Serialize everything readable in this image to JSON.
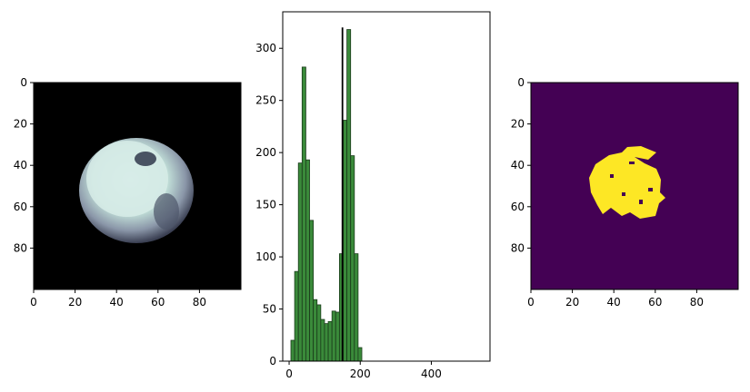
{
  "chart_data": [
    {
      "type": "image",
      "xlim": [
        0,
        100
      ],
      "ylim": [
        100,
        0
      ],
      "xticks": [
        0,
        20,
        40,
        60,
        80
      ],
      "yticks": [
        0,
        20,
        40,
        60,
        80
      ],
      "colormap": "bone",
      "subject": "bright circular blob on black background",
      "blob_center": [
        50,
        54
      ],
      "blob_radius": 26,
      "blob_bright_core_center": [
        48,
        48
      ],
      "blob_bright_core_radius": 20
    },
    {
      "type": "bar",
      "subtype": "histogram",
      "xlim": [
        -18,
        565
      ],
      "ylim": [
        0,
        335
      ],
      "xticks": [
        0,
        200,
        400
      ],
      "yticks": [
        0,
        50,
        100,
        150,
        200,
        250,
        300
      ],
      "bin_width": 10.5,
      "bin_edges_start": 5,
      "values": [
        20,
        86,
        190,
        282,
        193,
        135,
        59,
        54,
        40,
        36,
        38,
        48,
        47,
        103,
        231,
        318,
        197,
        103,
        13
      ],
      "bar_color": "#3a8a3a",
      "edge_color": "#1a3a1a",
      "threshold": 150,
      "threshold_ymax": 320,
      "threshold_color": "#000000"
    },
    {
      "type": "image",
      "xlim": [
        0,
        100
      ],
      "ylim": [
        100,
        0
      ],
      "xticks": [
        0,
        20,
        40,
        60,
        80
      ],
      "yticks": [
        0,
        20,
        40,
        60,
        80
      ],
      "colormap": "viridis",
      "background_color": "#440154",
      "mask_color": "#fde725",
      "subject": "binary threshold mask"
    }
  ]
}
